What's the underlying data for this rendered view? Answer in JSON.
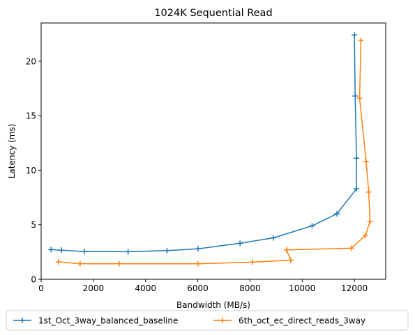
{
  "chart_data": {
    "type": "line",
    "title": "1024K  Sequential Read",
    "xlabel": "Bandwidth (MB/s)",
    "ylabel": "Latency (ms)",
    "xlim": [
      0,
      13200
    ],
    "ylim": [
      0,
      23.5
    ],
    "xticks": [
      0,
      2000,
      4000,
      6000,
      8000,
      10000,
      12000
    ],
    "yticks": [
      0,
      5,
      10,
      15,
      20
    ],
    "grid": false,
    "legend_position": "bottom-center",
    "marker": "+",
    "series": [
      {
        "name": "1st_Oct_3way_balanced_baseline",
        "color": "#1f77b4",
        "points": [
          [
            12000,
            22.4
          ],
          [
            12030,
            16.8
          ],
          [
            12080,
            11.1
          ],
          [
            12080,
            8.3
          ],
          [
            11330,
            6.0
          ],
          [
            10380,
            4.9
          ],
          [
            8900,
            3.8
          ],
          [
            7620,
            3.3
          ],
          [
            6010,
            2.8
          ],
          [
            4820,
            2.63
          ],
          [
            3330,
            2.53
          ],
          [
            1660,
            2.55
          ],
          [
            780,
            2.67
          ],
          [
            380,
            2.72
          ]
        ]
      },
      {
        "name": "6th_oct_ec_direct_reads_3way",
        "color": "#ff7f0e",
        "points": [
          [
            12250,
            21.9
          ],
          [
            12200,
            16.6
          ],
          [
            12450,
            10.8
          ],
          [
            12550,
            8.0
          ],
          [
            12600,
            5.3
          ],
          [
            12420,
            4.0
          ],
          [
            11880,
            2.85
          ],
          [
            9400,
            2.7
          ],
          [
            9560,
            1.75
          ],
          [
            8100,
            1.57
          ],
          [
            6010,
            1.42
          ],
          [
            2990,
            1.42
          ],
          [
            1490,
            1.42
          ],
          [
            660,
            1.6
          ]
        ]
      }
    ]
  }
}
